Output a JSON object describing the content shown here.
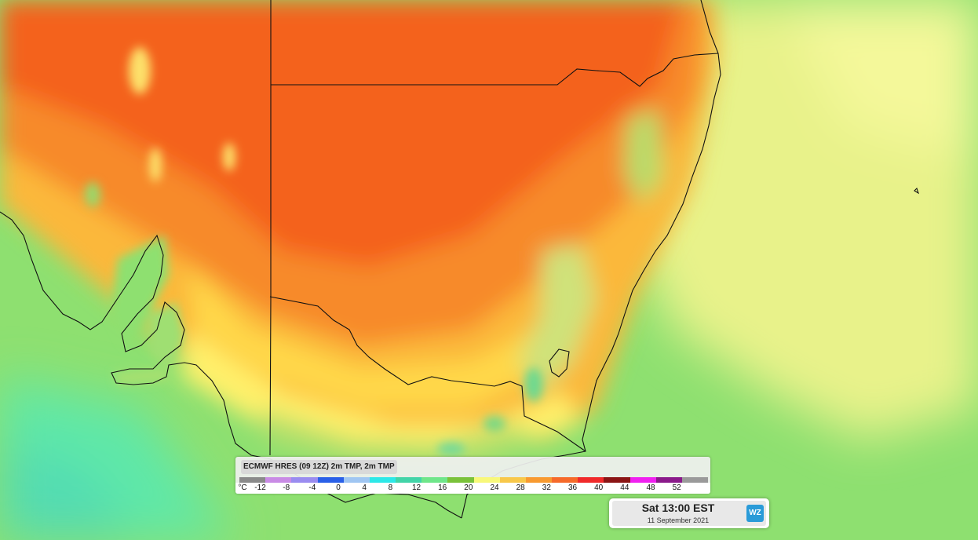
{
  "map": {
    "region": "south-east-australia",
    "colors": {
      "ocean_far": "#5fe8a8",
      "ocean": "#8ee070",
      "sea_yellow": "#e8f28a",
      "hot_core": "#f4621e",
      "hot": "#f78a2c",
      "warm": "#fbb83a",
      "mild": "#fff06a",
      "cool_land": "#b7e06b",
      "border": "#111111"
    }
  },
  "legend": {
    "title": "ECMWF HRES (09 12Z) 2m TMP, 2m TMP",
    "unit": "°C",
    "colors": [
      "#8a8a8a",
      "#c98be5",
      "#9a8cf0",
      "#2a60e8",
      "#a0c6f2",
      "#2de8e8",
      "#42d4a8",
      "#6fe68a",
      "#7ac23a",
      "#f8f87a",
      "#f8c84a",
      "#f89a30",
      "#f66a2a",
      "#f02a2a",
      "#8a1414",
      "#f020f0",
      "#8a1a8a",
      "#9a9a9a"
    ],
    "labels": [
      "-12",
      "-8",
      "-4",
      "0",
      "4",
      "8",
      "12",
      "16",
      "20",
      "24",
      "28",
      "32",
      "36",
      "40",
      "44",
      "48",
      "52"
    ]
  },
  "timestamp": {
    "time": "Sat 13:00 EST",
    "date": "11 September 2021",
    "logo": "WZ"
  }
}
